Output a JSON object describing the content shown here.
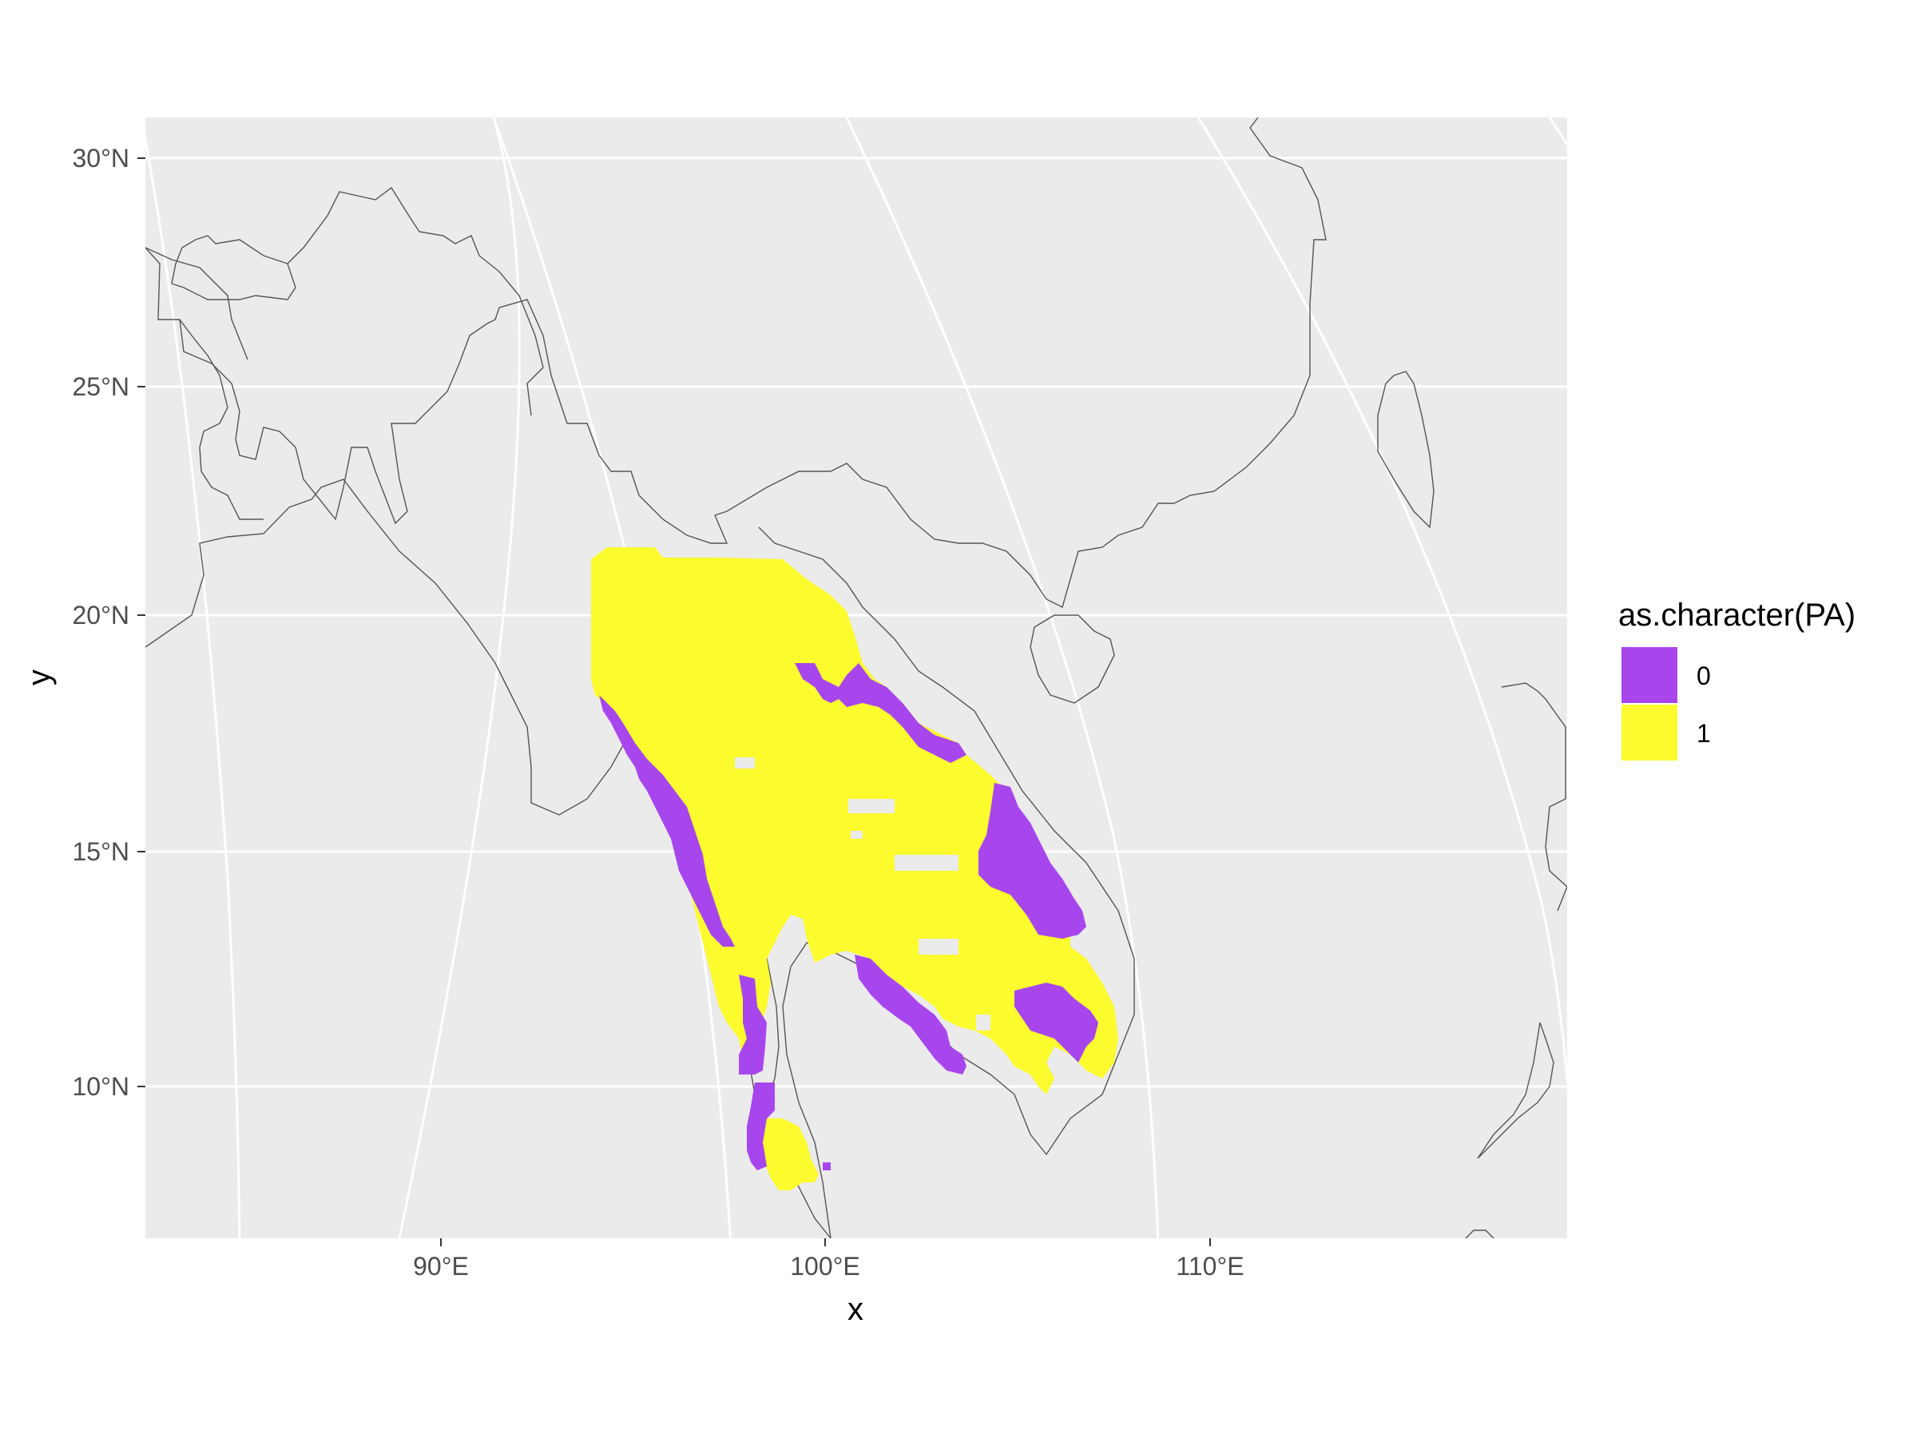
{
  "chart_data": {
    "type": "map-raster",
    "xlabel": "x",
    "ylabel": "y",
    "x_ticks": [
      {
        "value": 90,
        "label": "90°E"
      },
      {
        "value": 100,
        "label": "100°E"
      },
      {
        "value": 110,
        "label": "110°E"
      }
    ],
    "y_ticks": [
      {
        "value": 10,
        "label": "10°N"
      },
      {
        "value": 15,
        "label": "15°N"
      },
      {
        "value": 20,
        "label": "20°N"
      },
      {
        "value": 25,
        "label": "25°N"
      },
      {
        "value": 30,
        "label": "30°N"
      }
    ],
    "xlim": [
      82.5,
      119.3
    ],
    "ylim": [
      6.7,
      30.9
    ],
    "legend": {
      "title": "as.character(PA)",
      "placement": "right",
      "items": [
        {
          "label": "0",
          "color": "#a846ee"
        },
        {
          "label": "1",
          "color": "#fbfb2d"
        }
      ]
    },
    "colors": {
      "panel_background": "#ebebeb",
      "grid": "#ffffff",
      "coastline": "#555555",
      "absence": "#a846ee",
      "presence": "#fbfb2d"
    }
  }
}
